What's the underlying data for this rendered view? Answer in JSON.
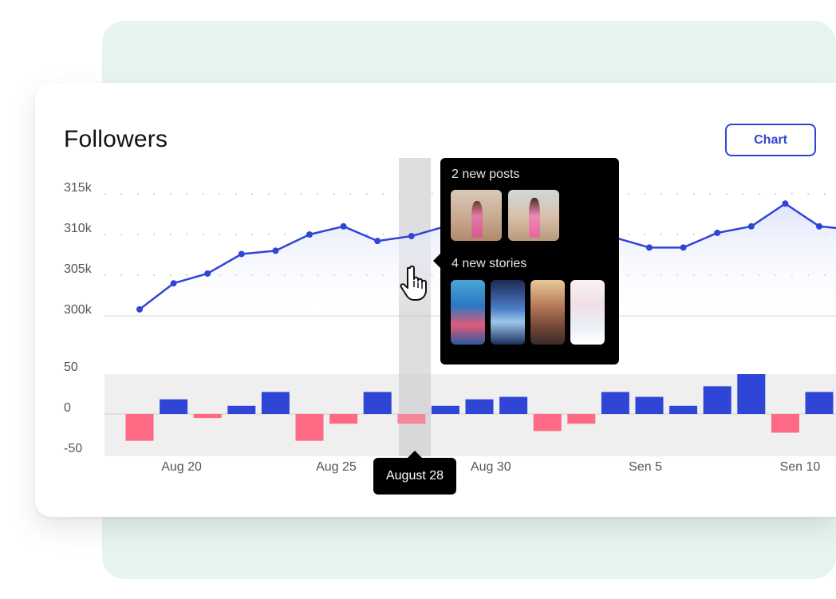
{
  "title": "Followers",
  "chart_button_label": "Chart",
  "tooltip": {
    "posts_heading": "2 new posts",
    "stories_heading": "4 new stories",
    "post_thumbnails": 2,
    "story_thumbnails": 4
  },
  "selected_date": "August 28",
  "icons": {
    "cursor": "hand-pointer-icon"
  },
  "colors": {
    "line": "#2f45d6",
    "positive_bar": "#2f45d6",
    "negative_bar": "#fe6a84",
    "background_panel": "#e6f5ee",
    "button_accent": "#2f45d6"
  },
  "chart_data": [
    {
      "type": "line",
      "ylabel": "",
      "yticks": [
        "315k",
        "310k",
        "305k",
        "300k"
      ],
      "ylim": [
        300000,
        315000
      ],
      "points": [
        300800,
        304000,
        305200,
        307600,
        308000,
        310000,
        311000,
        309200,
        309800,
        311000,
        311000,
        311000,
        311000,
        311000,
        309600,
        308400,
        308400,
        310200,
        311000,
        313800,
        311000,
        310600
      ]
    },
    {
      "type": "bar",
      "yticks": [
        "50",
        "0",
        "-50"
      ],
      "ylim": [
        -50,
        50
      ],
      "values": [
        -33,
        18,
        -5,
        10,
        27,
        -33,
        -12,
        27,
        -12,
        10,
        18,
        21,
        -21,
        -12,
        27,
        21,
        10,
        34,
        49,
        -23,
        27
      ],
      "x_tick_labels": [
        "Aug 20",
        "Aug 25",
        "Aug 30",
        "Sen 5",
        "Sen 10"
      ]
    }
  ]
}
